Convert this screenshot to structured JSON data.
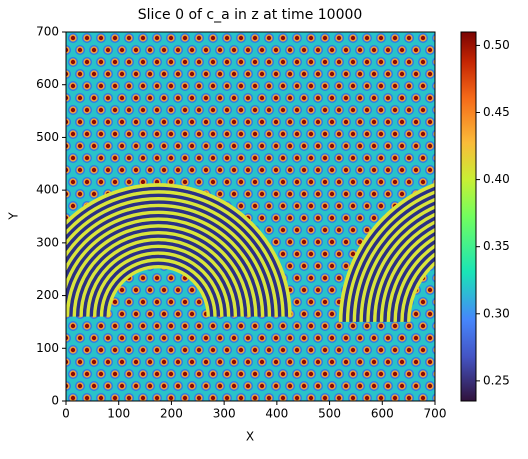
{
  "chart_data": {
    "type": "heatmap",
    "title": "Slice 0 of c_a in z at time 10000",
    "x_label": "X",
    "y_label": "Y",
    "xlim": [
      0,
      700
    ],
    "ylim": [
      0,
      700
    ],
    "xticks": [
      0,
      100,
      200,
      300,
      400,
      500,
      600,
      700
    ],
    "yticks": [
      0,
      100,
      200,
      300,
      400,
      500,
      600,
      700
    ],
    "colormap": "turbo",
    "clim": [
      0.235,
      0.51
    ],
    "cticks": [
      0.25,
      {
        "value": 0.3,
        "label": "0.30"
      },
      0.35,
      {
        "value": 0.4,
        "label": "0.40"
      },
      0.45,
      {
        "value": 0.5,
        "label": "0.50"
      }
    ]
  }
}
